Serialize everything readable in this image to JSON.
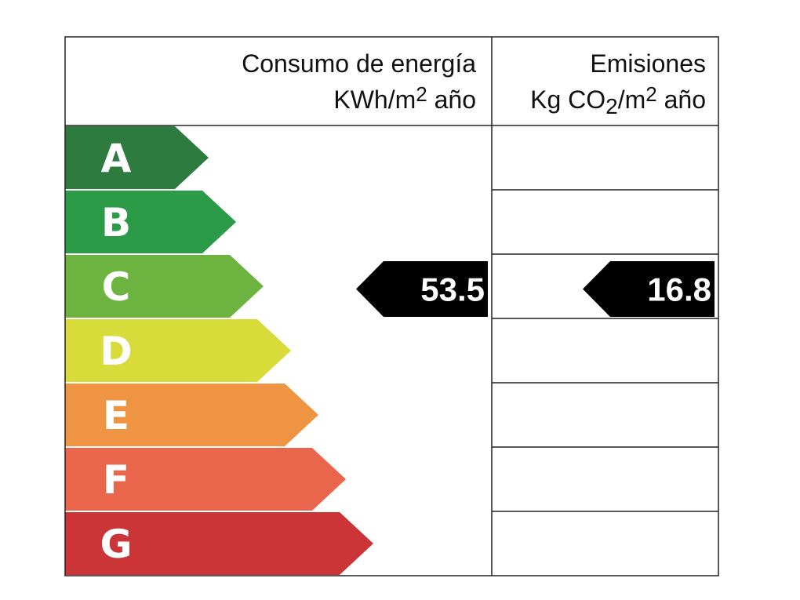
{
  "columns": [
    {
      "title": "Consumo de energía",
      "unit_parts": [
        "KWh/m",
        "2",
        " año"
      ],
      "unit_styles": [
        "normal",
        "super",
        "normal"
      ],
      "indicator": {
        "rating": "C",
        "value": 53.5
      }
    },
    {
      "title": "Emisiones",
      "unit_parts": [
        "Kg CO",
        "2",
        "/m",
        "2",
        " año"
      ],
      "unit_styles": [
        "normal",
        "sub",
        "normal",
        "super",
        "normal"
      ],
      "indicator": {
        "rating": "C",
        "value": 16.8
      }
    }
  ],
  "ratings": [
    {
      "label": "A",
      "color": "#2e7b3f"
    },
    {
      "label": "B",
      "color": "#2c9b48"
    },
    {
      "label": "C",
      "color": "#6cb33f"
    },
    {
      "label": "D",
      "color": "#d8dc3b"
    },
    {
      "label": "E",
      "color": "#ef9443"
    },
    {
      "label": "F",
      "color": "#e9664c"
    },
    {
      "label": "G",
      "color": "#cc3538"
    }
  ]
}
